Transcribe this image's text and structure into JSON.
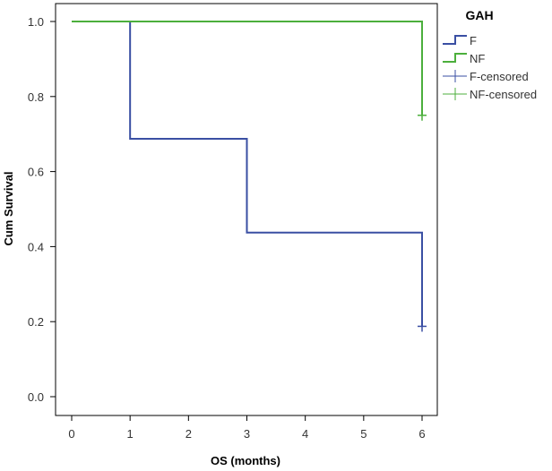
{
  "chart_data": {
    "type": "line",
    "subtype": "kaplan-meier-step",
    "xlabel": "OS (months)",
    "ylabel": "Cum Survival",
    "xlim": [
      0,
      6
    ],
    "ylim": [
      0,
      1
    ],
    "x_ticks": [
      "0",
      "1",
      "2",
      "3",
      "4",
      "5",
      "6"
    ],
    "y_ticks": [
      "0.0",
      "0.2",
      "0.4",
      "0.6",
      "0.8",
      "1.0"
    ],
    "grid": false,
    "legend": {
      "title": "GAH",
      "placement": "right",
      "entries": [
        {
          "label": "F",
          "kind": "step",
          "color": "#3a4fa3"
        },
        {
          "label": "NF",
          "kind": "step",
          "color": "#4caf3c"
        },
        {
          "label": "F-censored",
          "kind": "censor",
          "color": "#3a4fa3"
        },
        {
          "label": "NF-censored",
          "kind": "censor",
          "color": "#4caf3c"
        }
      ]
    },
    "series": [
      {
        "name": "F",
        "color": "#3a4fa3",
        "steps": [
          [
            0,
            1.0
          ],
          [
            1,
            0.6875
          ],
          [
            3,
            0.4375
          ],
          [
            6,
            0.1875
          ]
        ],
        "end_x": 6,
        "censored": [
          [
            6,
            0.1875
          ]
        ]
      },
      {
        "name": "NF",
        "color": "#4caf3c",
        "steps": [
          [
            0,
            1.0
          ],
          [
            6,
            0.75
          ]
        ],
        "end_x": 6,
        "censored": [
          [
            6,
            0.75
          ]
        ]
      }
    ]
  }
}
